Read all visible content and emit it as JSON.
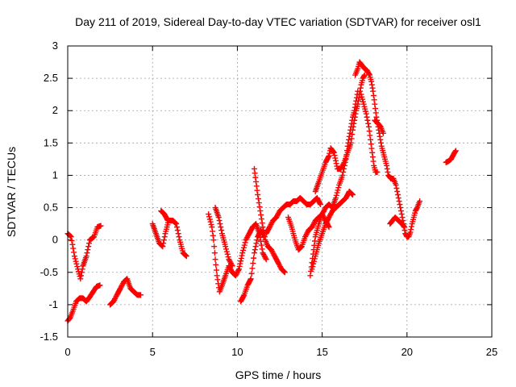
{
  "chart_data": {
    "type": "scatter",
    "title": "Day 211 of 2019, Sidereal Day-to-day VTEC variation (SDTVAR) for receiver osl1",
    "xlabel": "GPS time / hours",
    "ylabel": "SDTVAR / TECUs",
    "xlim": [
      0,
      25
    ],
    "ylim": [
      -1.5,
      3
    ],
    "xticks": [
      "0",
      "5",
      "10",
      "15",
      "20",
      "25"
    ],
    "yticks": [
      "-1.5",
      "-1",
      "-0.5",
      "0",
      "0.5",
      "1",
      "1.5",
      "2",
      "2.5",
      "3"
    ],
    "xtick_values": [
      0,
      5,
      10,
      15,
      20,
      25
    ],
    "ytick_values": [
      -1.5,
      -1,
      -0.5,
      0,
      0.5,
      1,
      1.5,
      2,
      2.5,
      3
    ],
    "grid": true,
    "marker": "+",
    "color": "#ff0000",
    "series": [
      {
        "segments": [
          [
            [
              0.0,
              0.1
            ],
            [
              0.2,
              0.05
            ],
            [
              0.4,
              -0.25
            ],
            [
              0.6,
              -0.45
            ],
            [
              0.75,
              -0.6
            ],
            [
              0.9,
              -0.4
            ],
            [
              1.1,
              -0.25
            ],
            [
              1.3,
              0.0
            ],
            [
              1.55,
              0.05
            ],
            [
              1.75,
              0.2
            ],
            [
              1.95,
              0.22
            ]
          ],
          [
            [
              0.0,
              -1.25
            ],
            [
              0.15,
              -1.2
            ],
            [
              0.3,
              -1.1
            ],
            [
              0.5,
              -0.95
            ],
            [
              0.7,
              -0.9
            ],
            [
              0.9,
              -0.9
            ],
            [
              1.1,
              -0.95
            ],
            [
              1.3,
              -0.88
            ],
            [
              1.5,
              -0.8
            ],
            [
              1.7,
              -0.72
            ],
            [
              1.9,
              -0.7
            ]
          ],
          [
            [
              2.5,
              -1.0
            ],
            [
              2.7,
              -0.95
            ],
            [
              2.9,
              -0.85
            ],
            [
              3.1,
              -0.75
            ],
            [
              3.3,
              -0.65
            ],
            [
              3.5,
              -0.6
            ],
            [
              3.7,
              -0.75
            ],
            [
              3.9,
              -0.8
            ],
            [
              4.1,
              -0.85
            ],
            [
              4.3,
              -0.85
            ]
          ],
          [
            [
              5.0,
              0.25
            ],
            [
              5.2,
              0.1
            ],
            [
              5.4,
              -0.05
            ],
            [
              5.6,
              -0.1
            ],
            [
              5.75,
              0.1
            ],
            [
              5.95,
              0.3
            ],
            [
              6.2,
              0.3
            ],
            [
              6.4,
              0.25
            ],
            [
              6.6,
              0.0
            ],
            [
              6.8,
              -0.2
            ],
            [
              7.0,
              -0.25
            ]
          ],
          [
            [
              5.5,
              0.45
            ],
            [
              5.7,
              0.4
            ],
            [
              5.9,
              0.3
            ]
          ],
          [
            [
              8.3,
              0.4
            ],
            [
              8.5,
              0.2
            ],
            [
              8.6,
              0.0
            ],
            [
              8.7,
              -0.3
            ],
            [
              8.8,
              -0.55
            ],
            [
              8.95,
              -0.8
            ],
            [
              9.1,
              -0.7
            ],
            [
              9.3,
              -0.55
            ],
            [
              9.5,
              -0.4
            ],
            [
              9.7,
              -0.5
            ],
            [
              9.9,
              -0.55
            ],
            [
              10.1,
              -0.45
            ],
            [
              10.3,
              -0.2
            ],
            [
              10.5,
              0.0
            ],
            [
              10.7,
              0.1
            ],
            [
              10.9,
              0.2
            ],
            [
              11.1,
              0.25
            ],
            [
              11.3,
              0.1
            ],
            [
              11.5,
              -0.2
            ],
            [
              11.7,
              -0.3
            ]
          ],
          [
            [
              8.7,
              0.5
            ],
            [
              8.9,
              0.35
            ],
            [
              9.1,
              0.1
            ],
            [
              9.3,
              -0.1
            ],
            [
              9.5,
              -0.3
            ],
            [
              9.7,
              -0.4
            ]
          ],
          [
            [
              10.2,
              -0.95
            ],
            [
              10.4,
              -0.85
            ],
            [
              10.6,
              -0.7
            ],
            [
              10.8,
              -0.6
            ],
            [
              11.0,
              -0.2
            ],
            [
              11.2,
              0.05
            ],
            [
              11.4,
              0.15
            ],
            [
              11.55,
              0.05
            ]
          ],
          [
            [
              11.0,
              1.1
            ],
            [
              11.1,
              0.9
            ],
            [
              11.2,
              0.7
            ],
            [
              11.35,
              0.45
            ],
            [
              11.5,
              0.2
            ],
            [
              11.65,
              0.0
            ],
            [
              11.8,
              -0.1
            ],
            [
              12.0,
              -0.15
            ],
            [
              12.2,
              -0.25
            ],
            [
              12.4,
              -0.35
            ],
            [
              12.6,
              -0.45
            ],
            [
              12.8,
              -0.5
            ]
          ],
          [
            [
              11.7,
              0.1
            ],
            [
              11.9,
              0.2
            ],
            [
              12.1,
              0.3
            ],
            [
              12.3,
              0.35
            ],
            [
              12.5,
              0.45
            ],
            [
              12.7,
              0.5
            ],
            [
              12.9,
              0.55
            ],
            [
              13.1,
              0.55
            ],
            [
              13.3,
              0.6
            ],
            [
              13.5,
              0.6
            ],
            [
              13.7,
              0.65
            ],
            [
              13.9,
              0.6
            ],
            [
              14.1,
              0.55
            ],
            [
              14.3,
              0.55
            ],
            [
              14.5,
              0.6
            ],
            [
              14.7,
              0.65
            ],
            [
              14.9,
              0.55
            ]
          ],
          [
            [
              13.0,
              0.35
            ],
            [
              13.2,
              0.2
            ],
            [
              13.4,
              0.0
            ],
            [
              13.6,
              -0.15
            ],
            [
              13.8,
              -0.1
            ],
            [
              14.0,
              0.05
            ],
            [
              14.2,
              0.15
            ],
            [
              14.4,
              0.2
            ],
            [
              14.6,
              0.3
            ],
            [
              14.8,
              0.35
            ],
            [
              15.0,
              0.4
            ],
            [
              15.2,
              0.5
            ],
            [
              15.4,
              0.55
            ],
            [
              15.6,
              0.5
            ],
            [
              15.8,
              0.5
            ]
          ],
          [
            [
              14.3,
              -0.55
            ],
            [
              14.4,
              -0.35
            ],
            [
              14.5,
              -0.15
            ],
            [
              14.6,
              0.05
            ],
            [
              14.8,
              0.25
            ],
            [
              15.0,
              0.4
            ],
            [
              15.2,
              0.3
            ],
            [
              15.4,
              0.2
            ]
          ],
          [
            [
              14.4,
              -0.45
            ],
            [
              14.6,
              -0.25
            ],
            [
              14.8,
              -0.05
            ],
            [
              15.0,
              0.1
            ],
            [
              15.2,
              0.25
            ],
            [
              15.4,
              0.35
            ],
            [
              15.6,
              0.45
            ],
            [
              15.8,
              0.5
            ],
            [
              16.0,
              0.55
            ],
            [
              16.2,
              0.6
            ],
            [
              16.4,
              0.65
            ],
            [
              16.6,
              0.75
            ],
            [
              16.8,
              0.7
            ]
          ],
          [
            [
              14.6,
              0.75
            ],
            [
              14.8,
              0.9
            ],
            [
              15.0,
              1.05
            ],
            [
              15.2,
              1.2
            ],
            [
              15.4,
              1.3
            ],
            [
              15.5,
              1.42
            ],
            [
              15.7,
              1.35
            ],
            [
              15.9,
              1.1
            ],
            [
              16.1,
              1.1
            ],
            [
              16.3,
              1.2
            ],
            [
              16.5,
              1.35
            ],
            [
              16.7,
              1.5
            ],
            [
              16.8,
              1.7
            ],
            [
              16.9,
              1.85
            ],
            [
              17.0,
              2.0
            ],
            [
              17.1,
              2.1
            ],
            [
              17.2,
              2.25
            ],
            [
              17.3,
              2.4
            ],
            [
              17.4,
              2.5
            ],
            [
              17.5,
              2.55
            ]
          ],
          [
            [
              15.6,
              0.5
            ],
            [
              15.8,
              0.65
            ],
            [
              16.0,
              0.85
            ],
            [
              16.2,
              1.0
            ],
            [
              16.4,
              1.25
            ],
            [
              16.5,
              1.45
            ],
            [
              16.6,
              1.6
            ],
            [
              16.7,
              1.75
            ],
            [
              16.8,
              1.9
            ],
            [
              16.9,
              2.0
            ],
            [
              17.0,
              2.15
            ],
            [
              17.1,
              2.3
            ]
          ],
          [
            [
              16.95,
              2.55
            ],
            [
              17.1,
              2.65
            ],
            [
              17.2,
              2.75
            ],
            [
              17.35,
              2.7
            ],
            [
              17.5,
              2.65
            ],
            [
              17.65,
              2.62
            ],
            [
              17.8,
              2.55
            ],
            [
              17.9,
              2.45
            ],
            [
              18.0,
              2.3
            ],
            [
              18.1,
              2.1
            ],
            [
              18.2,
              1.9
            ],
            [
              18.3,
              1.75
            ],
            [
              18.4,
              1.6
            ],
            [
              18.5,
              1.45
            ],
            [
              18.6,
              1.35
            ],
            [
              18.7,
              1.25
            ],
            [
              18.8,
              1.15
            ],
            [
              18.9,
              1.0
            ],
            [
              19.05,
              0.95
            ],
            [
              19.2,
              0.95
            ],
            [
              19.35,
              0.85
            ],
            [
              19.5,
              0.65
            ],
            [
              19.65,
              0.45
            ],
            [
              19.8,
              0.25
            ],
            [
              19.9,
              0.1
            ],
            [
              20.0,
              0.05
            ],
            [
              20.1,
              0.05
            ],
            [
              20.2,
              0.12
            ],
            [
              20.3,
              0.25
            ],
            [
              20.4,
              0.35
            ],
            [
              20.5,
              0.45
            ],
            [
              20.6,
              0.5
            ],
            [
              20.75,
              0.6
            ]
          ],
          [
            [
              17.3,
              2.25
            ],
            [
              17.45,
              2.1
            ],
            [
              17.6,
              1.95
            ],
            [
              17.75,
              1.75
            ],
            [
              17.85,
              1.55
            ],
            [
              17.95,
              1.35
            ],
            [
              18.05,
              1.15
            ],
            [
              18.15,
              1.05
            ],
            [
              18.25,
              1.05
            ]
          ],
          [
            [
              18.1,
              1.85
            ],
            [
              18.3,
              1.8
            ],
            [
              18.45,
              1.75
            ],
            [
              18.6,
              1.65
            ]
          ],
          [
            [
              19.0,
              0.25
            ],
            [
              19.15,
              0.3
            ],
            [
              19.3,
              0.35
            ],
            [
              19.5,
              0.3
            ],
            [
              19.7,
              0.25
            ],
            [
              19.85,
              0.2
            ]
          ],
          [
            [
              22.3,
              1.2
            ],
            [
              22.45,
              1.22
            ],
            [
              22.6,
              1.25
            ],
            [
              22.7,
              1.3
            ],
            [
              22.8,
              1.35
            ],
            [
              22.88,
              1.38
            ]
          ]
        ]
      }
    ]
  }
}
